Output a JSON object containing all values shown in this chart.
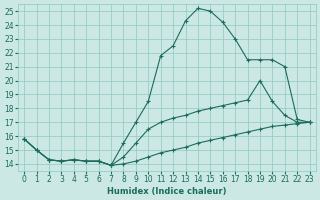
{
  "xlabel": "Humidex (Indice chaleur)",
  "bg_color": "#cce8e4",
  "grid_color": "#8ec8c0",
  "line_color": "#1a6b60",
  "xlim": [
    -0.5,
    23.5
  ],
  "ylim": [
    13.5,
    25.5
  ],
  "xticks": [
    0,
    1,
    2,
    3,
    4,
    5,
    6,
    7,
    8,
    9,
    10,
    11,
    12,
    13,
    14,
    15,
    16,
    17,
    18,
    19,
    20,
    21,
    22,
    23
  ],
  "yticks": [
    14,
    15,
    16,
    17,
    18,
    19,
    20,
    21,
    22,
    23,
    24,
    25
  ],
  "line1_x": [
    0,
    1,
    2,
    3,
    4,
    5,
    6,
    7,
    8,
    9,
    10,
    11,
    12,
    13,
    14,
    15,
    16,
    17,
    18,
    19,
    20,
    21,
    22,
    23
  ],
  "line1_y": [
    15.8,
    15.0,
    14.3,
    14.2,
    14.3,
    14.2,
    14.2,
    13.9,
    14.0,
    14.2,
    14.5,
    14.8,
    15.0,
    15.2,
    15.5,
    15.7,
    15.9,
    16.1,
    16.3,
    16.5,
    16.7,
    16.8,
    16.9,
    17.0
  ],
  "line2_x": [
    0,
    1,
    2,
    3,
    4,
    5,
    6,
    7,
    8,
    9,
    10,
    11,
    12,
    13,
    14,
    15,
    16,
    17,
    18,
    19,
    20,
    21,
    22,
    23
  ],
  "line2_y": [
    15.8,
    15.0,
    14.3,
    14.2,
    14.3,
    14.2,
    14.2,
    13.9,
    14.5,
    15.5,
    16.5,
    17.0,
    17.3,
    17.5,
    17.8,
    18.0,
    18.2,
    18.4,
    18.6,
    20.0,
    18.5,
    17.5,
    17.0,
    17.0
  ],
  "line3_x": [
    0,
    1,
    2,
    3,
    4,
    5,
    6,
    7,
    8,
    9,
    10,
    11,
    12,
    13,
    14,
    15,
    16,
    17,
    18,
    19,
    20,
    21,
    22,
    23
  ],
  "line3_y": [
    15.8,
    15.0,
    14.3,
    14.2,
    14.3,
    14.2,
    14.2,
    13.9,
    15.5,
    17.0,
    18.5,
    21.8,
    22.5,
    24.3,
    25.2,
    25.0,
    24.2,
    23.0,
    21.5,
    21.5,
    21.5,
    21.0,
    17.2,
    17.0
  ]
}
